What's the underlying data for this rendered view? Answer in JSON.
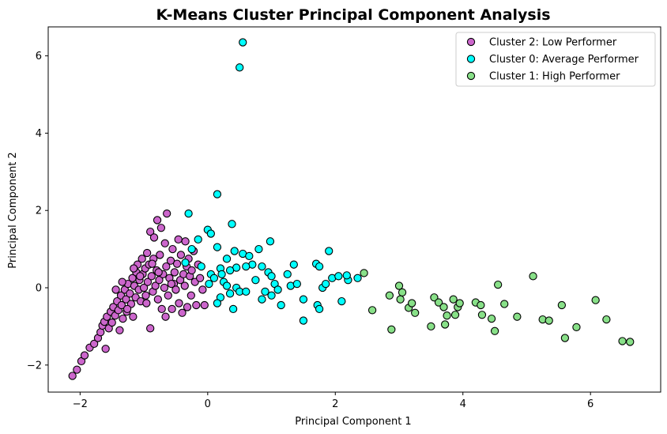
{
  "chart_data": {
    "type": "scatter",
    "title": "K-Means Cluster Principal Component Analysis",
    "xlabel": "Principal Component 1",
    "ylabel": "Principal Component 2",
    "xlim": [
      -2.5,
      7.1
    ],
    "ylim": [
      -2.7,
      6.75
    ],
    "xticks": [
      -2,
      0,
      2,
      4,
      6
    ],
    "yticks": [
      -2,
      0,
      2,
      4,
      6
    ],
    "xtick_labels": [
      "−2",
      "0",
      "2",
      "4",
      "6"
    ],
    "ytick_labels": [
      "−2",
      "0",
      "2",
      "4",
      "6"
    ],
    "grid": false,
    "legend_position": "top-right",
    "series": [
      {
        "name": "Cluster 2: Low Performer",
        "color": "#cc66cc",
        "points": [
          [
            -2.12,
            -2.28
          ],
          [
            -2.05,
            -2.12
          ],
          [
            -1.98,
            -1.9
          ],
          [
            -1.93,
            -1.75
          ],
          [
            -1.85,
            -1.55
          ],
          [
            -1.78,
            -1.45
          ],
          [
            -1.72,
            -1.3
          ],
          [
            -1.68,
            -1.15
          ],
          [
            -1.65,
            -0.98
          ],
          [
            -1.6,
            -1.58
          ],
          [
            -1.62,
            -0.88
          ],
          [
            -1.58,
            -0.75
          ],
          [
            -1.55,
            -1.05
          ],
          [
            -1.52,
            -0.62
          ],
          [
            -1.5,
            -0.9
          ],
          [
            -1.48,
            -0.5
          ],
          [
            -1.45,
            -0.72
          ],
          [
            -1.42,
            -0.35
          ],
          [
            -1.4,
            -0.58
          ],
          [
            -1.38,
            -1.1
          ],
          [
            -1.36,
            -0.2
          ],
          [
            -1.35,
            -0.45
          ],
          [
            -1.33,
            -0.8
          ],
          [
            -1.3,
            -0.05
          ],
          [
            -1.28,
            -0.3
          ],
          [
            -1.27,
            -0.62
          ],
          [
            -1.25,
            0.1
          ],
          [
            -1.22,
            -0.15
          ],
          [
            -1.2,
            -0.42
          ],
          [
            -1.18,
            0.25
          ],
          [
            -1.17,
            -0.75
          ],
          [
            -1.15,
            0.05
          ],
          [
            -1.13,
            -0.25
          ],
          [
            -1.12,
            0.4
          ],
          [
            -1.1,
            0.6
          ],
          [
            -1.08,
            -0.05
          ],
          [
            -1.07,
            0.2
          ],
          [
            -1.05,
            -0.35
          ],
          [
            -1.03,
            0.75
          ],
          [
            -1.02,
            0.35
          ],
          [
            -1.0,
            0.0
          ],
          [
            -0.98,
            0.5
          ],
          [
            -0.97,
            -0.2
          ],
          [
            -0.95,
            0.9
          ],
          [
            -0.94,
            0.15
          ],
          [
            -0.92,
            0.6
          ],
          [
            -0.9,
            1.45
          ],
          [
            -0.9,
            -1.05
          ],
          [
            -0.88,
            0.3
          ],
          [
            -0.86,
            -0.1
          ],
          [
            -0.85,
            0.75
          ],
          [
            -0.84,
            1.3
          ],
          [
            -0.82,
            0.05
          ],
          [
            -0.8,
            0.45
          ],
          [
            -0.79,
            1.75
          ],
          [
            -0.78,
            -0.3
          ],
          [
            -0.76,
            0.2
          ],
          [
            -0.75,
            0.85
          ],
          [
            -0.73,
            1.55
          ],
          [
            -0.72,
            -0.55
          ],
          [
            -0.7,
            0.35
          ],
          [
            -0.68,
            0.0
          ],
          [
            -0.67,
            1.15
          ],
          [
            -0.65,
            0.55
          ],
          [
            -0.64,
            1.92
          ],
          [
            -0.62,
            -0.2
          ],
          [
            -0.6,
            0.25
          ],
          [
            -0.58,
            0.7
          ],
          [
            -0.56,
            -0.55
          ],
          [
            -0.55,
            1.0
          ],
          [
            -0.53,
            0.1
          ],
          [
            -0.52,
            0.4
          ],
          [
            -0.5,
            -0.05
          ],
          [
            -0.48,
            0.62
          ],
          [
            -0.46,
            1.25
          ],
          [
            -0.45,
            -0.4
          ],
          [
            -0.43,
            0.2
          ],
          [
            -0.42,
            0.85
          ],
          [
            -0.4,
            -0.65
          ],
          [
            -0.38,
            0.35
          ],
          [
            -0.36,
            0.05
          ],
          [
            -0.35,
            1.2
          ],
          [
            -0.33,
            0.55
          ],
          [
            -0.32,
            -0.5
          ],
          [
            -0.3,
            0.75
          ],
          [
            -0.28,
            0.3
          ],
          [
            -0.26,
            -0.2
          ],
          [
            -0.25,
            0.45
          ],
          [
            -0.22,
            0.95
          ],
          [
            -0.2,
            0.15
          ],
          [
            -0.18,
            -0.45
          ],
          [
            -0.15,
            0.6
          ],
          [
            -0.12,
            0.25
          ],
          [
            -0.08,
            -0.05
          ],
          [
            -0.05,
            -0.45
          ],
          [
            -1.44,
            -0.05
          ],
          [
            -1.34,
            0.15
          ],
          [
            -1.26,
            -0.55
          ],
          [
            -1.16,
            0.5
          ],
          [
            -1.06,
            0.3
          ],
          [
            -0.96,
            -0.4
          ],
          [
            -0.87,
            0.62
          ],
          [
            -0.77,
            0.4
          ],
          [
            -0.66,
            -0.75
          ],
          [
            -0.57,
            0.1
          ]
        ]
      },
      {
        "name": "Cluster 0: Average Performer",
        "color": "#00ffff",
        "points": [
          [
            0.55,
            6.35
          ],
          [
            0.5,
            5.7
          ],
          [
            0.15,
            2.42
          ],
          [
            0.38,
            1.65
          ],
          [
            -0.3,
            1.92
          ],
          [
            0.0,
            1.5
          ],
          [
            0.05,
            1.4
          ],
          [
            -0.15,
            1.25
          ],
          [
            -0.25,
            1.0
          ],
          [
            0.15,
            1.05
          ],
          [
            0.42,
            0.95
          ],
          [
            0.55,
            0.88
          ],
          [
            0.65,
            0.82
          ],
          [
            0.7,
            0.6
          ],
          [
            0.45,
            0.52
          ],
          [
            0.3,
            0.75
          ],
          [
            0.2,
            0.5
          ],
          [
            0.35,
            0.45
          ],
          [
            0.05,
            0.35
          ],
          [
            0.1,
            0.25
          ],
          [
            0.25,
            0.15
          ],
          [
            0.3,
            0.05
          ],
          [
            0.45,
            0.0
          ],
          [
            0.5,
            -0.1
          ],
          [
            0.35,
            -0.15
          ],
          [
            0.2,
            -0.25
          ],
          [
            0.15,
            -0.4
          ],
          [
            0.4,
            -0.55
          ],
          [
            0.6,
            -0.1
          ],
          [
            0.75,
            0.2
          ],
          [
            0.85,
            0.55
          ],
          [
            0.95,
            0.4
          ],
          [
            1.0,
            0.3
          ],
          [
            1.05,
            0.1
          ],
          [
            1.1,
            -0.05
          ],
          [
            0.85,
            -0.3
          ],
          [
            1.0,
            -0.2
          ],
          [
            1.15,
            -0.45
          ],
          [
            1.25,
            0.35
          ],
          [
            1.35,
            0.6
          ],
          [
            1.3,
            0.05
          ],
          [
            1.5,
            -0.3
          ],
          [
            1.5,
            -0.85
          ],
          [
            1.7,
            0.62
          ],
          [
            1.75,
            0.55
          ],
          [
            1.72,
            -0.45
          ],
          [
            1.75,
            -0.55
          ],
          [
            1.8,
            0.0
          ],
          [
            1.85,
            0.1
          ],
          [
            1.9,
            0.95
          ],
          [
            1.95,
            0.25
          ],
          [
            2.05,
            0.3
          ],
          [
            2.1,
            -0.35
          ],
          [
            2.2,
            0.2
          ],
          [
            2.35,
            0.25
          ],
          [
            2.18,
            0.32
          ],
          [
            0.98,
            1.2
          ],
          [
            0.8,
            1.0
          ],
          [
            -0.1,
            0.55
          ],
          [
            0.02,
            0.1
          ],
          [
            -0.35,
            0.65
          ],
          [
            0.22,
            0.35
          ],
          [
            0.6,
            0.55
          ],
          [
            0.9,
            -0.1
          ],
          [
            1.4,
            0.1
          ]
        ]
      },
      {
        "name": "Cluster 1: High Performer",
        "color": "#88e088",
        "points": [
          [
            2.45,
            0.38
          ],
          [
            2.58,
            -0.58
          ],
          [
            2.85,
            -0.2
          ],
          [
            2.88,
            -1.08
          ],
          [
            3.0,
            0.05
          ],
          [
            3.02,
            -0.3
          ],
          [
            3.05,
            -0.12
          ],
          [
            3.15,
            -0.52
          ],
          [
            3.2,
            -0.4
          ],
          [
            3.25,
            -0.65
          ],
          [
            3.5,
            -1.0
          ],
          [
            3.55,
            -0.25
          ],
          [
            3.62,
            -0.38
          ],
          [
            3.7,
            -0.5
          ],
          [
            3.72,
            -0.95
          ],
          [
            3.75,
            -0.72
          ],
          [
            3.85,
            -0.3
          ],
          [
            3.88,
            -0.7
          ],
          [
            3.92,
            -0.5
          ],
          [
            3.95,
            -0.4
          ],
          [
            4.2,
            -0.38
          ],
          [
            4.28,
            -0.45
          ],
          [
            4.3,
            -0.7
          ],
          [
            4.45,
            -0.8
          ],
          [
            4.5,
            -1.12
          ],
          [
            4.55,
            0.08
          ],
          [
            4.65,
            -0.42
          ],
          [
            4.85,
            -0.75
          ],
          [
            5.1,
            0.3
          ],
          [
            5.25,
            -0.82
          ],
          [
            5.35,
            -0.85
          ],
          [
            5.55,
            -0.45
          ],
          [
            5.6,
            -1.3
          ],
          [
            5.78,
            -1.02
          ],
          [
            6.08,
            -0.32
          ],
          [
            6.25,
            -0.82
          ],
          [
            6.5,
            -1.38
          ],
          [
            6.62,
            -1.4
          ]
        ]
      }
    ]
  }
}
